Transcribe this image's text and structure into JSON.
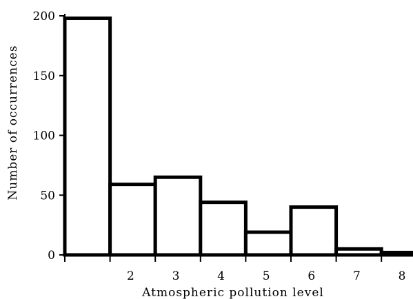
{
  "chart_data": {
    "type": "bar",
    "title": "",
    "xlabel": "Atmospheric pollution level",
    "ylabel": "Number of occurrences",
    "x_ticks": [
      "2",
      "3",
      "4",
      "5",
      "6",
      "7",
      "8"
    ],
    "y_ticks": [
      "0",
      "50",
      "100",
      "150",
      "200"
    ],
    "ylim": [
      0,
      200
    ],
    "xlim": [
      0,
      8
    ],
    "bins": [
      {
        "start": 0,
        "end": 1,
        "value": 198
      },
      {
        "start": 1,
        "end": 2,
        "value": 59
      },
      {
        "start": 2,
        "end": 3,
        "value": 65
      },
      {
        "start": 3,
        "end": 4,
        "value": 44
      },
      {
        "start": 4,
        "end": 5,
        "value": 19
      },
      {
        "start": 5,
        "end": 6,
        "value": 40
      },
      {
        "start": 6,
        "end": 7,
        "value": 5
      },
      {
        "start": 7,
        "end": 8,
        "value": 2
      }
    ],
    "grid": false,
    "legend": "none",
    "bar_fill": "#ffffff",
    "bar_stroke": "#000000"
  }
}
